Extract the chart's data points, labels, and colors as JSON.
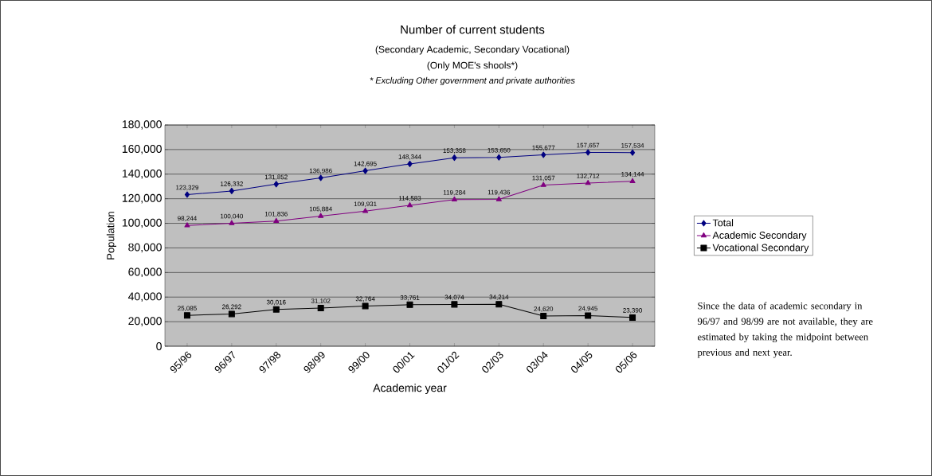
{
  "chart_data": {
    "type": "line",
    "title": "Number of current students",
    "subtitle": "(Secondary Academic, Secondary Vocational)",
    "annotations": [
      "(Only MOE's shools*)",
      "* Excluding Other government and private authorities",
      "Since the data of academic secondary in 96/97 and 98/99 are not available, they are estimated by taking the midpoint between previous and next year."
    ],
    "xlabel": "Academic year",
    "ylabel": "Population",
    "categories": [
      "95/96",
      "96/97",
      "97/98",
      "98/99",
      "99/00",
      "00/01",
      "01/02",
      "02/03",
      "03/04",
      "04/05",
      "05/06"
    ],
    "series": [
      {
        "name": "Total",
        "color": "#000080",
        "marker": "diamond",
        "value_labels": [
          "123,329",
          "126,332",
          "131,852",
          "136,986",
          "142,695",
          "148,344",
          "153,358",
          "153,650",
          "155,677",
          "157,657",
          "157,534"
        ],
        "values": [
          123329,
          126332,
          131852,
          136986,
          142695,
          148344,
          153358,
          153650,
          155677,
          157657,
          157534
        ]
      },
      {
        "name": "Academic Secondary",
        "color": "#800080",
        "marker": "triangle",
        "value_labels": [
          "98,244",
          "100,040",
          "101,836",
          "105,884",
          "109,931",
          "114,583",
          "119,284",
          "119,436",
          "131,057",
          "132,712",
          "134,144"
        ],
        "values": [
          98244,
          100040,
          101836,
          105884,
          109931,
          114583,
          119284,
          119436,
          131057,
          132712,
          134144
        ]
      },
      {
        "name": "Vocational Secondary",
        "color": "#000000",
        "marker": "square",
        "value_labels": [
          "25,085",
          "26,292",
          "30,016",
          "31,102",
          "32,764",
          "33,761",
          "34,074",
          "34,214",
          "24,620",
          "24,945",
          "23,390"
        ],
        "values": [
          25085,
          26292,
          30016,
          31102,
          32764,
          33761,
          34074,
          34214,
          24620,
          24945,
          23390
        ]
      }
    ],
    "ylim": [
      0,
      180000
    ],
    "yticks": [
      0,
      {
        "value": 20000,
        "label": "20,000"
      },
      {
        "value": 40000,
        "label": "40,000"
      },
      {
        "value": 60000,
        "label": "60,000"
      },
      {
        "value": 80000,
        "label": "80,000"
      },
      {
        "value": 100000,
        "label": "100,000"
      },
      {
        "value": 120000,
        "label": "120,000"
      },
      {
        "value": 140000,
        "label": "140,000"
      },
      {
        "value": 160000,
        "label": "160,000"
      },
      {
        "value": 180000,
        "label": "180,000"
      }
    ],
    "grid": "y",
    "legend": "right"
  }
}
